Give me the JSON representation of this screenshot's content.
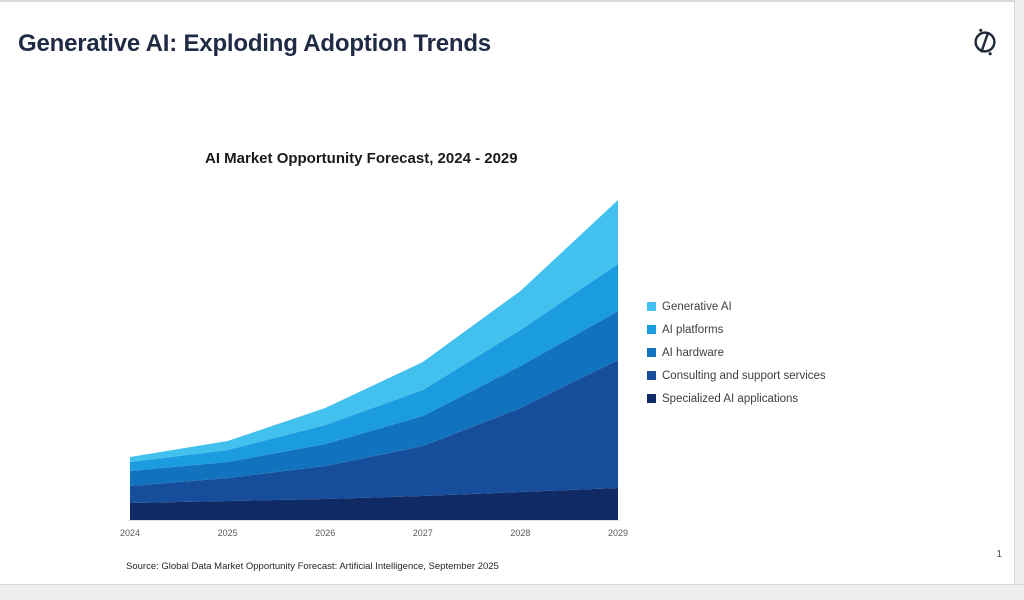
{
  "slide": {
    "title": "Generative AI: Exploding Adoption Trends",
    "source_note": "Source: Global Data Market Opportunity Forecast: Artificial Intelligence, September 2025",
    "page_number": "1",
    "logo": "globaldata-mark"
  },
  "colors": {
    "title_text": "#1F2A44",
    "axis_label_text": "#595959",
    "legend_text": "#404040"
  },
  "chart_data": {
    "type": "area",
    "stacked": true,
    "title": "AI Market Opportunity Forecast, 2024 - 2029",
    "x": [
      "2024",
      "2025",
      "2026",
      "2027",
      "2028",
      "2029"
    ],
    "series": [
      {
        "name": "Generative AI",
        "color": "#43C1EE",
        "values": [
          5,
          9,
          17,
          28,
          39,
          64
        ]
      },
      {
        "name": "AI platforms",
        "color": "#1C9CE0",
        "values": [
          9,
          12,
          19,
          26,
          36,
          47
        ]
      },
      {
        "name": "AI hardware",
        "color": "#1173BE",
        "values": [
          15,
          16,
          22,
          30,
          42,
          49
        ]
      },
      {
        "name": "Consulting and support services",
        "color": "#174E9B",
        "values": [
          17,
          23,
          33,
          50,
          84,
          128
        ]
      },
      {
        "name": "Specialized AI applications",
        "color": "#0F2A64",
        "values": [
          17,
          19,
          21,
          24,
          28,
          32
        ]
      }
    ],
    "stack_order": "bottom-to-top: Specialized AI applications, Consulting and support services, AI hardware, AI platforms, Generative AI",
    "xlabel": "",
    "ylabel": "",
    "y_axis_visible": false,
    "values_note": "no y-axis shown; values estimated relative units from chart heights",
    "legend_position": "right",
    "grid": false
  }
}
